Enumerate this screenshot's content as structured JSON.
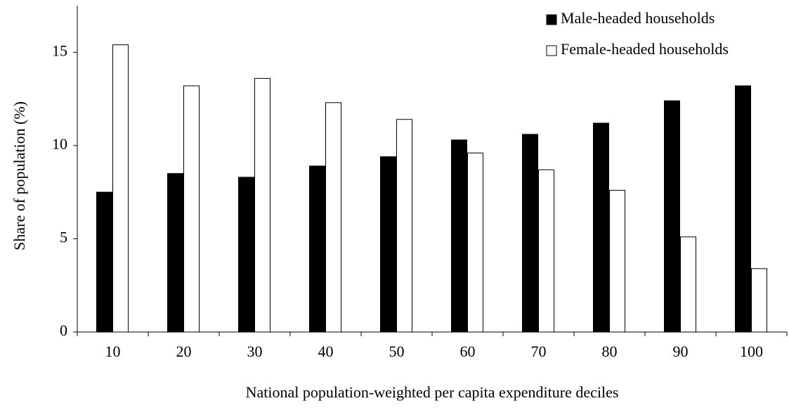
{
  "chart_data": {
    "type": "bar",
    "xlabel": "National population-weighted per capita expenditure deciles",
    "ylabel": "Share of population (%)",
    "categories": [
      "10",
      "20",
      "30",
      "40",
      "50",
      "60",
      "70",
      "80",
      "90",
      "100"
    ],
    "series": [
      {
        "name": "Male-headed households",
        "color": "#000000",
        "values": [
          7.5,
          8.5,
          8.3,
          8.9,
          9.4,
          10.3,
          10.6,
          11.2,
          12.4,
          13.2
        ]
      },
      {
        "name": "Female-headed households",
        "color": "#ffffff",
        "values": [
          15.4,
          13.2,
          13.6,
          12.3,
          11.4,
          9.6,
          8.7,
          7.6,
          5.1,
          3.4
        ]
      }
    ],
    "ylim": [
      0,
      17.5
    ],
    "yticks": [
      0,
      5,
      10,
      15
    ],
    "legend": "upper right"
  }
}
